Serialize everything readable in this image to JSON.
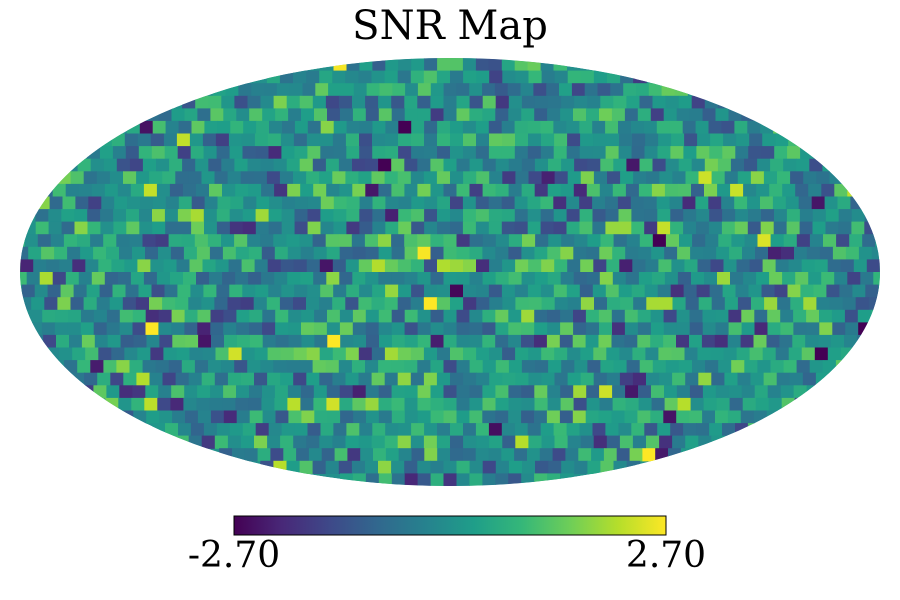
{
  "title": "SNR Map",
  "chart_data": {
    "type": "heatmap",
    "projection": "mollweide",
    "title": "SNR Map",
    "colormap": "viridis",
    "colormap_stops": [
      "#440154",
      "#482878",
      "#3e4989",
      "#31688e",
      "#26828e",
      "#1f9e89",
      "#35b779",
      "#6ece58",
      "#b5de2b",
      "#fde725"
    ],
    "background_value": 0.0,
    "colorbar": {
      "min": -2.7,
      "max": 2.7,
      "min_label": "-2.70",
      "max_label": "2.70",
      "orientation": "horizontal",
      "placement": "bottom"
    },
    "grid": false,
    "value_distribution": "random pixel field, mostly near 0 (teal), scattered highs (yellow) and lows (purple)"
  }
}
